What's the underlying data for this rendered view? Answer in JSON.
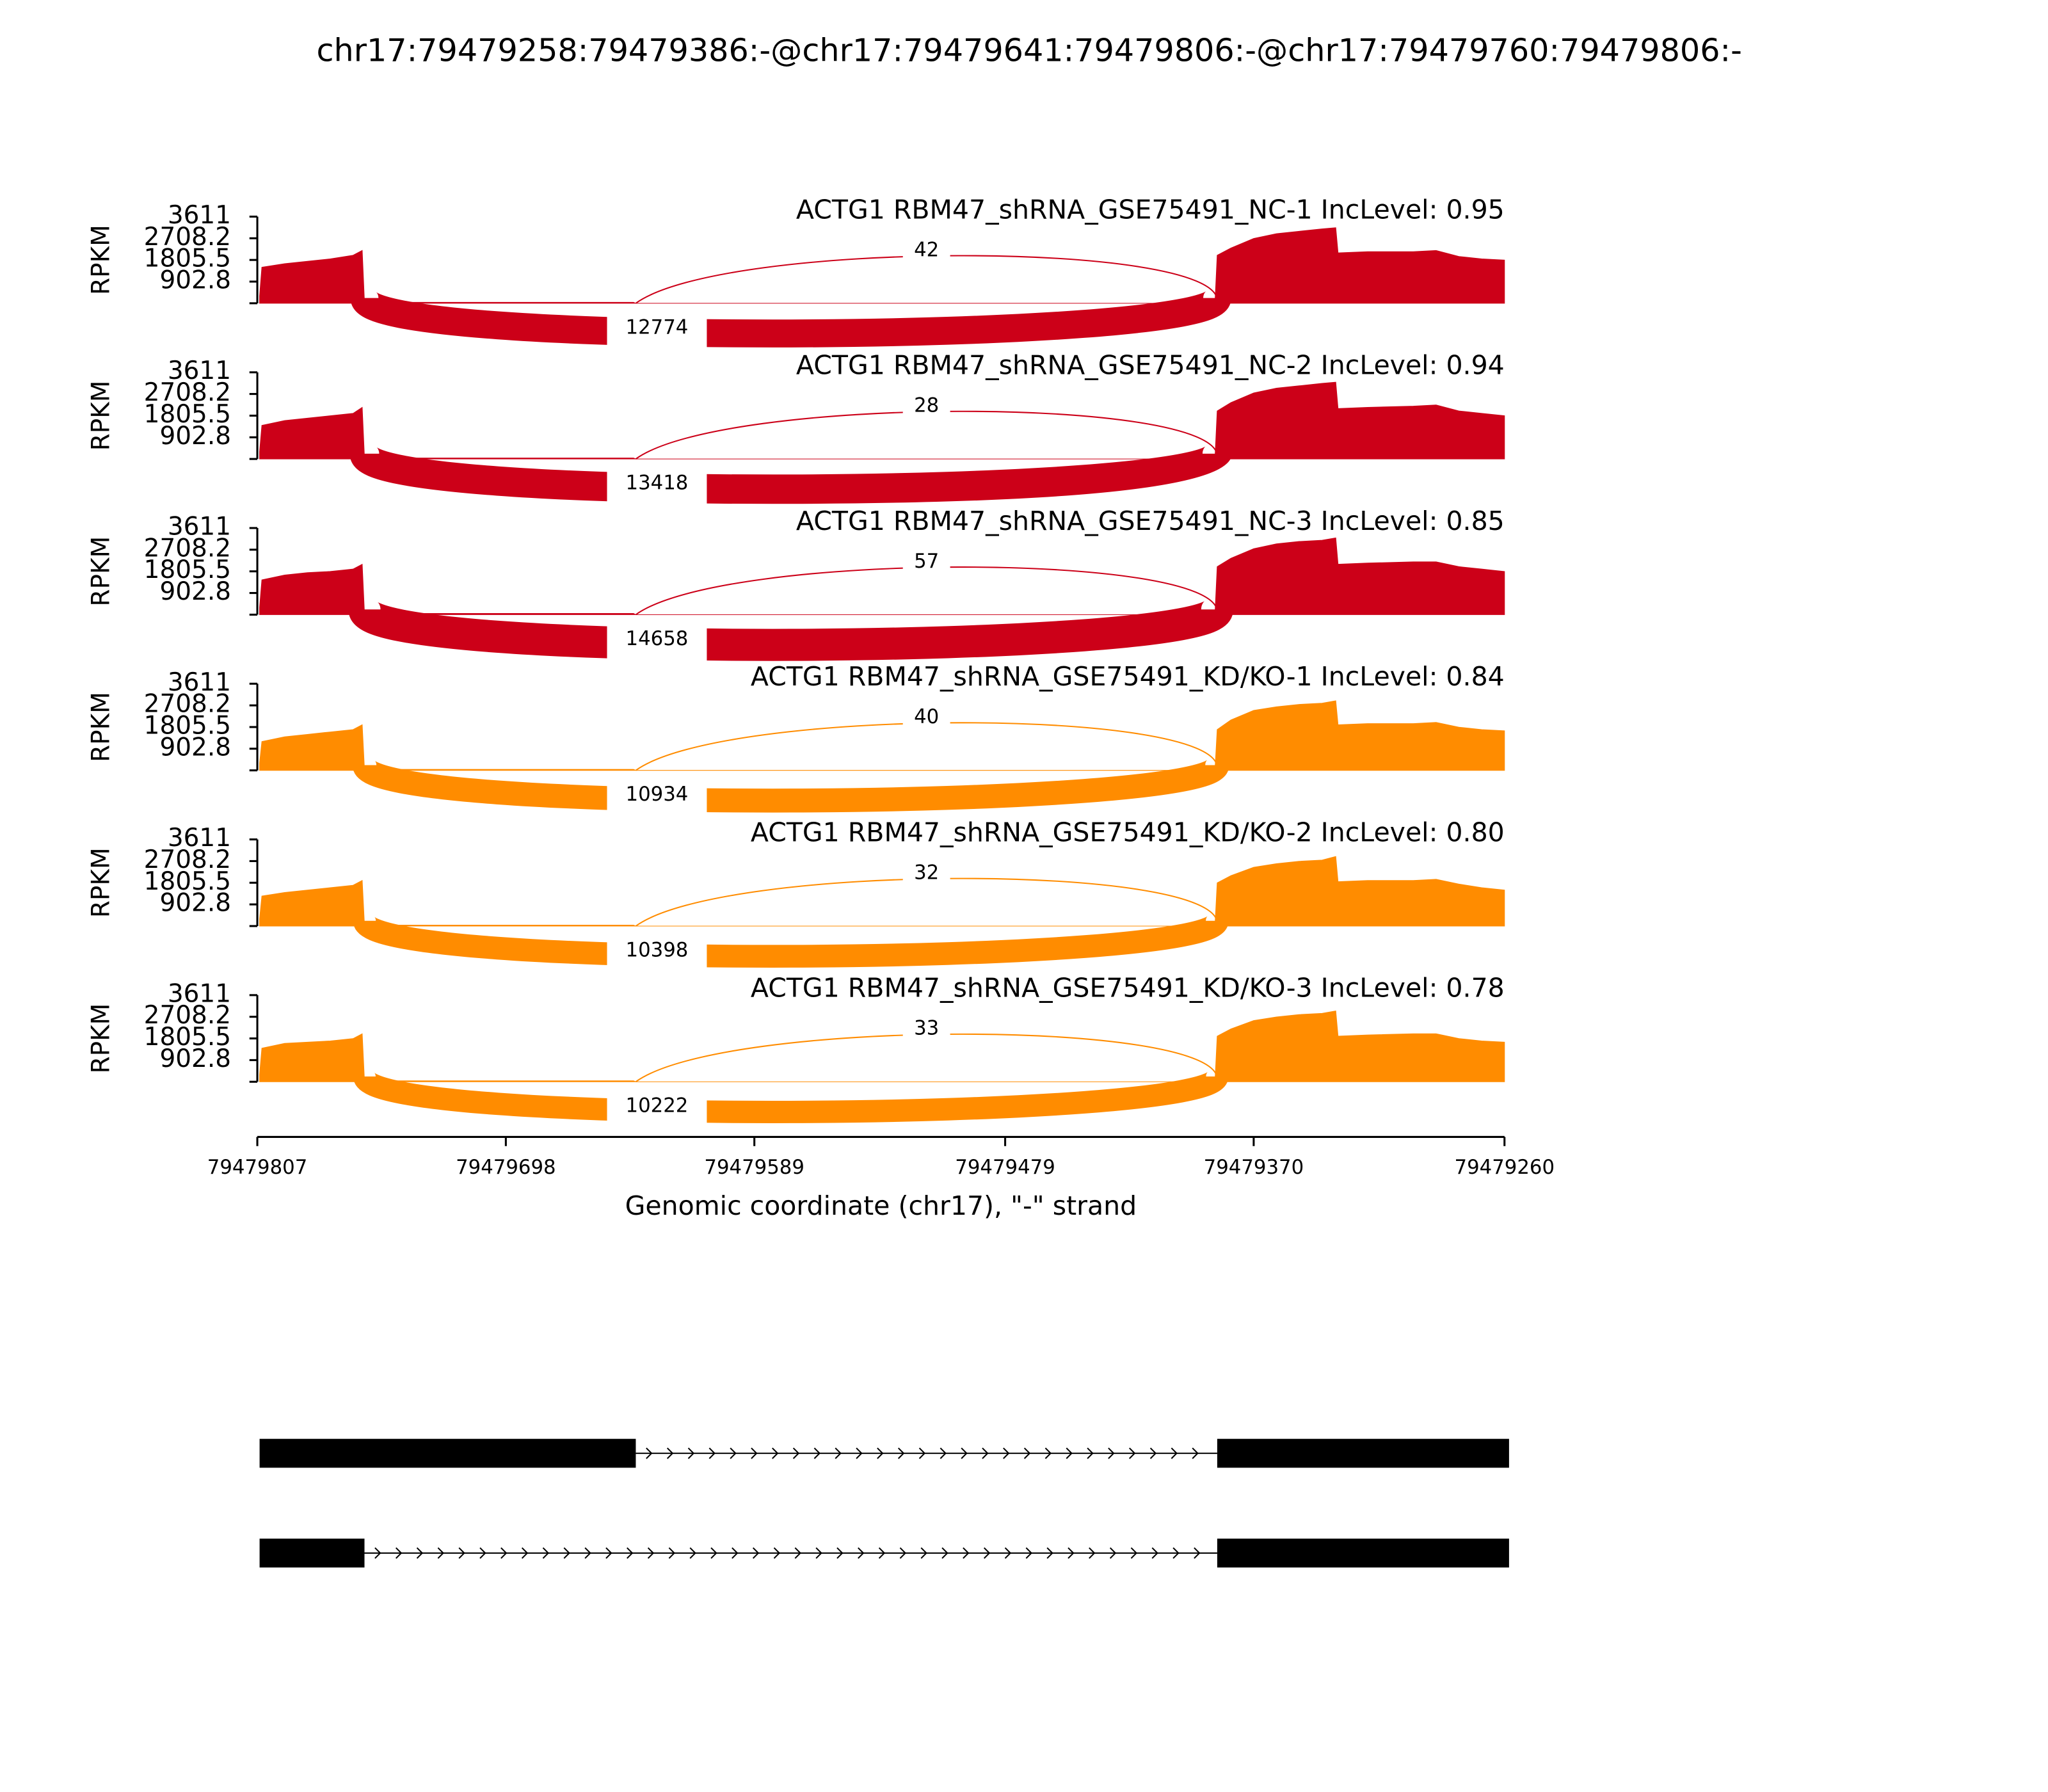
{
  "chart_data": {
    "type": "sashimi",
    "title": "chr17:79479258:79479386:-@chr17:79479641:79479806:-@chr17:79479760:79479806:-",
    "xlabel": "Genomic coordinate (chr17), \"-\" strand",
    "ylabel": "RPKM",
    "xlim": [
      79479807,
      79479260
    ],
    "xticks": [
      79479807,
      79479698,
      79479589,
      79479479,
      79479370,
      79479260
    ],
    "ylim": [
      0,
      3611
    ],
    "yticks": [
      902.8,
      1805.5,
      2708.2,
      3611
    ],
    "x": [
      79479806,
      79479805,
      79479795,
      79479785,
      79479775,
      79479765,
      79479761,
      79479760,
      79479642,
      79479641,
      79479387,
      79479386,
      79479380,
      79479370,
      79479360,
      79479350,
      79479340,
      79479334,
      79479333,
      79479320,
      79479300,
      79479290,
      79479280,
      79479270,
      79479260
    ],
    "panels": [
      {
        "label": "ACTG1 RBM47_shRNA_GSE75491_NC-1 IncLevel: 0.95",
        "color": "#cc0018",
        "values": [
          300,
          1500,
          1650,
          1750,
          1850,
          2000,
          2200,
          40,
          40,
          0,
          0,
          2000,
          2300,
          2700,
          2900,
          3000,
          3100,
          3150,
          2100,
          2150,
          2150,
          2200,
          1950,
          1850,
          1800
        ],
        "junctions": [
          {
            "start": 79479641,
            "end": 79479386,
            "count": 42
          },
          {
            "start": 79479760,
            "end": 79479386,
            "count": 12774
          }
        ]
      },
      {
        "label": "ACTG1 RBM47_shRNA_GSE75491_NC-2 IncLevel: 0.94",
        "color": "#cc0018",
        "values": [
          300,
          1400,
          1600,
          1700,
          1800,
          1900,
          2150,
          40,
          40,
          0,
          0,
          2000,
          2350,
          2750,
          2950,
          3050,
          3150,
          3200,
          2100,
          2150,
          2200,
          2250,
          2000,
          1900,
          1800
        ],
        "junctions": [
          {
            "start": 79479641,
            "end": 79479386,
            "count": 28
          },
          {
            "start": 79479760,
            "end": 79479386,
            "count": 13418
          }
        ]
      },
      {
        "label": "ACTG1 RBM47_shRNA_GSE75491_NC-3 IncLevel: 0.85",
        "color": "#cc0018",
        "values": [
          300,
          1450,
          1650,
          1750,
          1800,
          1900,
          2100,
          50,
          50,
          0,
          0,
          2000,
          2350,
          2750,
          2950,
          3050,
          3100,
          3200,
          2100,
          2150,
          2200,
          2200,
          2000,
          1900,
          1800
        ],
        "junctions": [
          {
            "start": 79479641,
            "end": 79479386,
            "count": 57
          },
          {
            "start": 79479760,
            "end": 79479386,
            "count": 14658
          }
        ]
      },
      {
        "label": "ACTG1 RBM47_shRNA_GSE75491_KD/KO-1 IncLevel: 0.84",
        "color": "#ff8c00",
        "values": [
          300,
          1200,
          1400,
          1500,
          1600,
          1700,
          1900,
          40,
          40,
          0,
          0,
          1700,
          2100,
          2500,
          2650,
          2750,
          2800,
          2900,
          1900,
          1950,
          1950,
          2000,
          1800,
          1700,
          1650
        ],
        "junctions": [
          {
            "start": 79479641,
            "end": 79479386,
            "count": 40
          },
          {
            "start": 79479760,
            "end": 79479386,
            "count": 10934
          }
        ]
      },
      {
        "label": "ACTG1 RBM47_shRNA_GSE75491_KD/KO-2 IncLevel: 0.80",
        "color": "#ff8c00",
        "values": [
          300,
          1250,
          1400,
          1500,
          1600,
          1700,
          1900,
          40,
          40,
          0,
          0,
          1800,
          2100,
          2450,
          2600,
          2700,
          2750,
          2900,
          1850,
          1900,
          1900,
          1950,
          1750,
          1600,
          1500
        ],
        "junctions": [
          {
            "start": 79479641,
            "end": 79479386,
            "count": 32
          },
          {
            "start": 79479760,
            "end": 79479386,
            "count": 10398
          }
        ]
      },
      {
        "label": "ACTG1 RBM47_shRNA_GSE75491_KD/KO-3 IncLevel: 0.78",
        "color": "#ff8c00",
        "values": [
          300,
          1400,
          1600,
          1650,
          1700,
          1800,
          2000,
          40,
          40,
          0,
          0,
          1900,
          2200,
          2550,
          2700,
          2800,
          2850,
          2950,
          1900,
          1950,
          2000,
          2000,
          1800,
          1700,
          1650
        ],
        "junctions": [
          {
            "start": 79479641,
            "end": 79479386,
            "count": 33
          },
          {
            "start": 79479760,
            "end": 79479386,
            "count": 10222
          }
        ]
      }
    ],
    "transcripts": [
      {
        "exons": [
          [
            79479806,
            79479641
          ],
          [
            79479386,
            79479258
          ]
        ]
      },
      {
        "exons": [
          [
            79479806,
            79479760
          ],
          [
            79479386,
            79479258
          ]
        ]
      }
    ]
  }
}
